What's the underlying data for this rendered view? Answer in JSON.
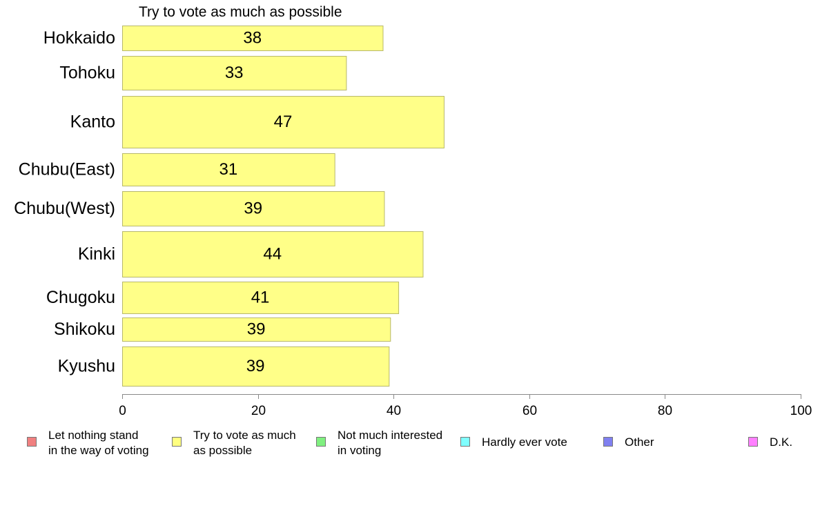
{
  "chart_data": {
    "type": "bar",
    "orientation": "horizontal",
    "title": "Try to vote as much as possible",
    "categories": [
      "Hokkaido",
      "Tohoku",
      "Kanto",
      "Chubu(East)",
      "Chubu(West)",
      "Kinki",
      "Chugoku",
      "Shikoku",
      "Kyushu"
    ],
    "values": [
      38.4,
      33.0,
      47.4,
      31.3,
      38.6,
      44.3,
      40.7,
      39.5,
      39.3
    ],
    "data_labels": [
      "38",
      "33",
      "47",
      "31",
      "39",
      "44",
      "41",
      "39",
      "39"
    ],
    "xlim": [
      0,
      100
    ],
    "x_ticks": [
      "0",
      "20",
      "40",
      "60",
      "80",
      "100"
    ],
    "bar_color": "#ffff88",
    "bar_edge_color": "#b8b86a",
    "grid": false,
    "legend_position": "bottom",
    "legend": [
      {
        "label": "Let nothing stand\nin the way of voting",
        "color": "#f08080"
      },
      {
        "label": "Try to vote as much\nas possible",
        "color": "#ffff80"
      },
      {
        "label": "Not much interested\nin voting",
        "color": "#80f080"
      },
      {
        "label": "Hardly ever vote",
        "color": "#80ffff"
      },
      {
        "label": "Other",
        "color": "#8080f0"
      },
      {
        "label": "D.K.",
        "color": "#ff80ff"
      }
    ]
  }
}
